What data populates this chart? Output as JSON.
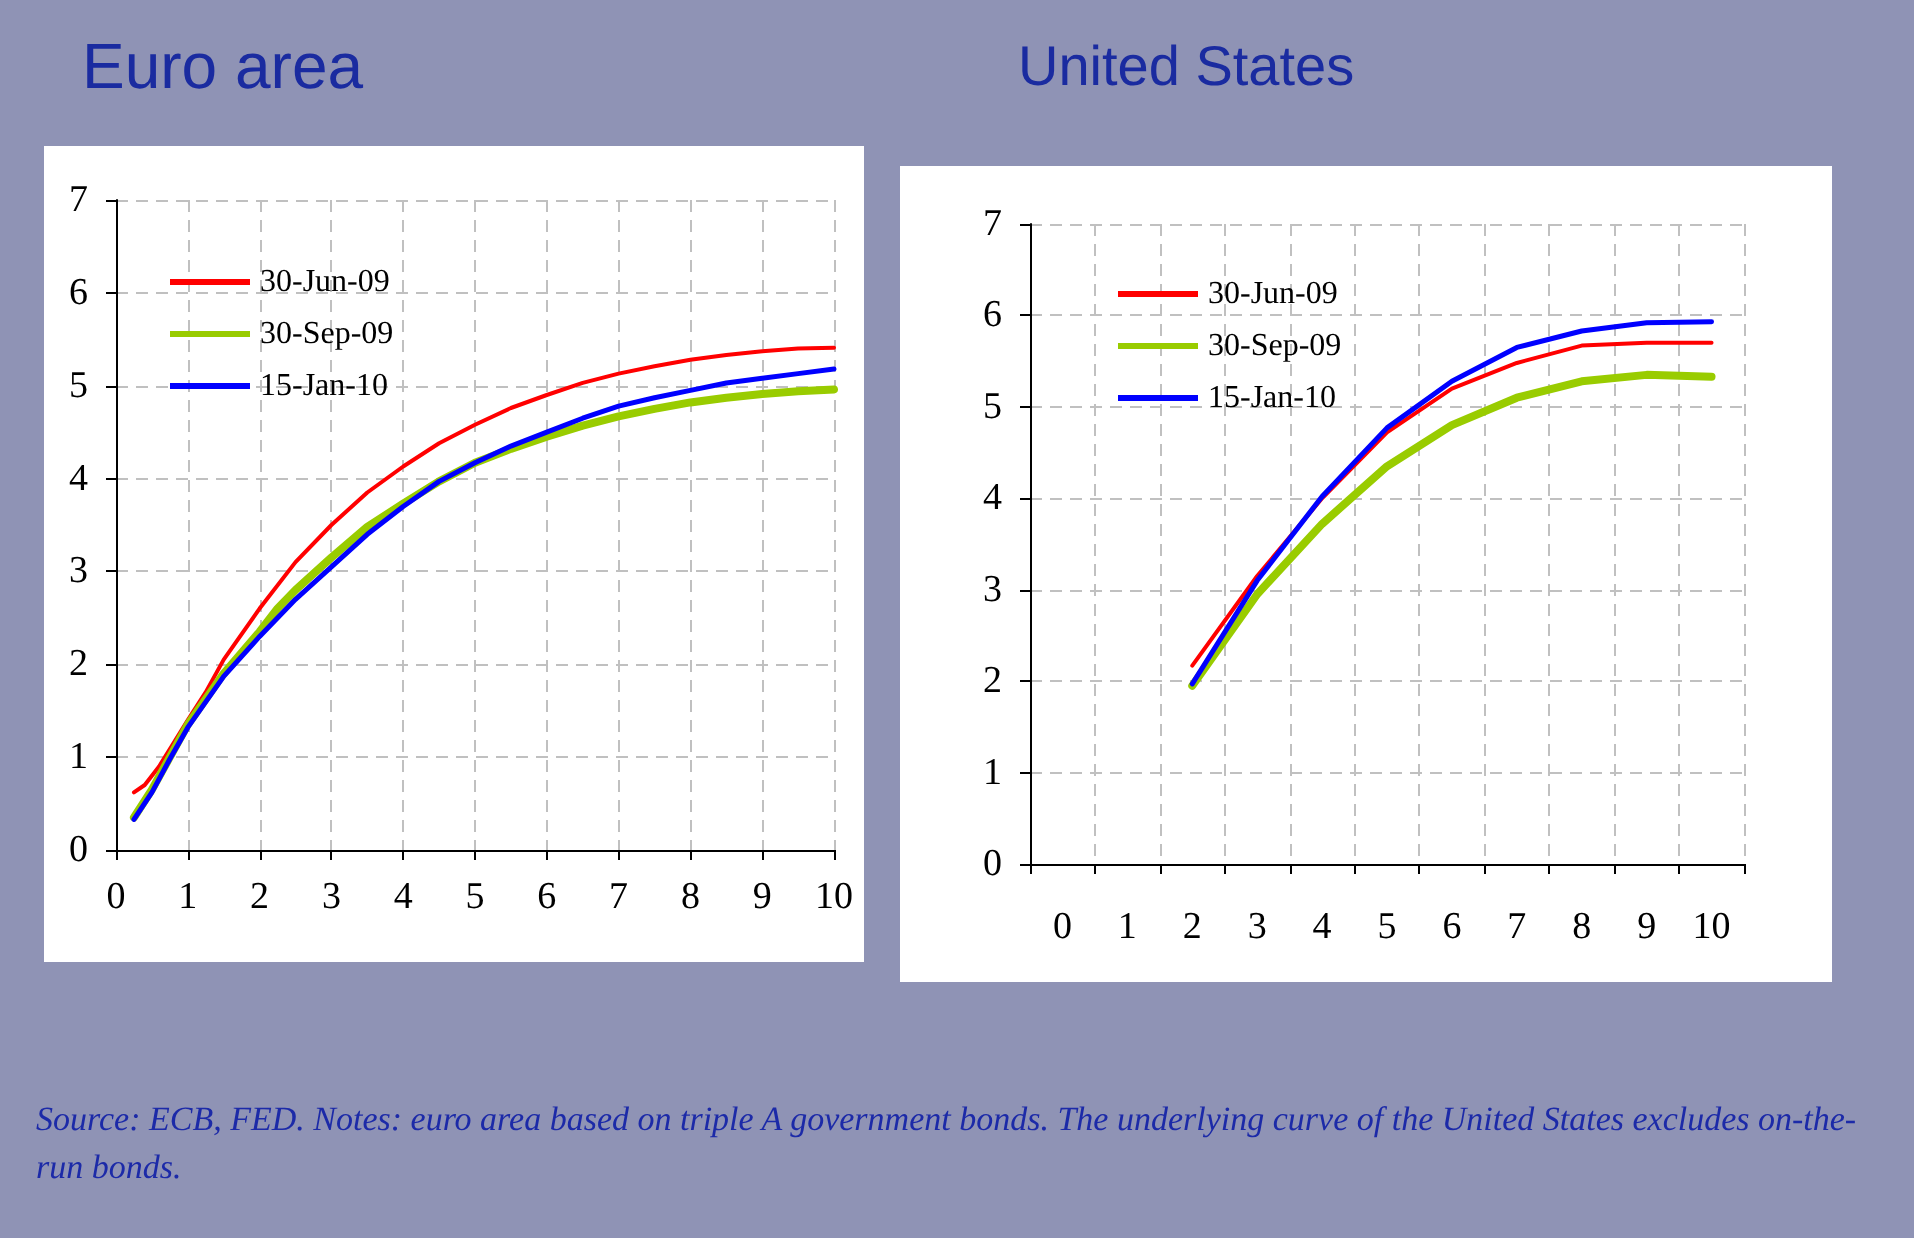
{
  "chart_data": [
    {
      "type": "line",
      "title": "Euro area",
      "xlim": [
        0,
        10
      ],
      "xticks": [
        0,
        1,
        2,
        3,
        4,
        5,
        6,
        7,
        8,
        9,
        10
      ],
      "ylim": [
        0,
        7
      ],
      "yticks": [
        0,
        1,
        2,
        3,
        4,
        5,
        6,
        7
      ],
      "grid": true,
      "legend": "top left",
      "marker": "none",
      "line_style": "solid",
      "series": [
        {
          "name": "30-Jun-09",
          "color": "#ff0000",
          "x": [
            0.25,
            0.4,
            0.6,
            0.8,
            1,
            1.25,
            1.5,
            2,
            2.5,
            3,
            3.5,
            4,
            4.5,
            5,
            5.5,
            6,
            6.5,
            7,
            7.5,
            8,
            8.5,
            9,
            9.5,
            10
          ],
          "values": [
            0.62,
            0.7,
            0.9,
            1.15,
            1.4,
            1.7,
            2.05,
            2.6,
            3.1,
            3.5,
            3.85,
            4.13,
            4.38,
            4.58,
            4.76,
            4.9,
            5.03,
            5.13,
            5.21,
            5.28,
            5.33,
            5.37,
            5.4,
            5.41
          ]
        },
        {
          "name": "30-Sep-09",
          "color": "#99cc00",
          "x": [
            0.25,
            0.5,
            0.75,
            1,
            1.5,
            2,
            2.25,
            2.5,
            3,
            3.5,
            4,
            4.5,
            5,
            5.5,
            6,
            6.5,
            7,
            7.5,
            8,
            8.5,
            9,
            9.5,
            10
          ],
          "values": [
            0.35,
            0.65,
            1.0,
            1.35,
            1.9,
            2.35,
            2.6,
            2.8,
            3.15,
            3.48,
            3.73,
            3.97,
            4.17,
            4.32,
            4.45,
            4.57,
            4.67,
            4.75,
            4.82,
            4.87,
            4.91,
            4.94,
            4.96
          ]
        },
        {
          "name": "15-Jan-10",
          "color": "#0000ff",
          "x": [
            0.25,
            0.5,
            0.75,
            1,
            1.5,
            2,
            2.5,
            3,
            3.5,
            4,
            4.5,
            5,
            5.5,
            6,
            6.5,
            7,
            7.5,
            8,
            8.5,
            9,
            9.5,
            10
          ],
          "values": [
            0.33,
            0.62,
            0.98,
            1.32,
            1.87,
            2.3,
            2.7,
            3.05,
            3.4,
            3.7,
            3.97,
            4.17,
            4.35,
            4.5,
            4.65,
            4.78,
            4.87,
            4.95,
            5.03,
            5.08,
            5.13,
            5.18
          ]
        }
      ],
      "annotations": [
        "Source: ECB, FED. Notes: euro area based on triple A government bonds. The underlying curve of the United States excludes on-the-run bonds."
      ]
    },
    {
      "type": "line",
      "title": "United States",
      "categories": [
        "0",
        "1",
        "2",
        "3",
        "4",
        "5",
        "6",
        "7",
        "8",
        "9",
        "10"
      ],
      "ylim": [
        0,
        7
      ],
      "yticks": [
        0,
        1,
        2,
        3,
        4,
        5,
        6,
        7
      ],
      "grid": true,
      "legend": "top left",
      "marker": "none",
      "line_style": "solid",
      "series": [
        {
          "name": "30-Jun-09",
          "color": "#ff0000",
          "values": [
            null,
            null,
            2.17,
            3.15,
            4.0,
            4.72,
            5.2,
            5.48,
            5.67,
            5.7,
            5.7
          ]
        },
        {
          "name": "30-Sep-09",
          "color": "#99cc00",
          "values": [
            null,
            null,
            1.95,
            2.95,
            3.72,
            4.35,
            4.8,
            5.1,
            5.28,
            5.35,
            5.33
          ]
        },
        {
          "name": "15-Jan-10",
          "color": "#0000ff",
          "values": [
            null,
            null,
            1.97,
            3.1,
            4.02,
            4.77,
            5.28,
            5.65,
            5.83,
            5.92,
            5.93
          ]
        }
      ]
    }
  ]
}
